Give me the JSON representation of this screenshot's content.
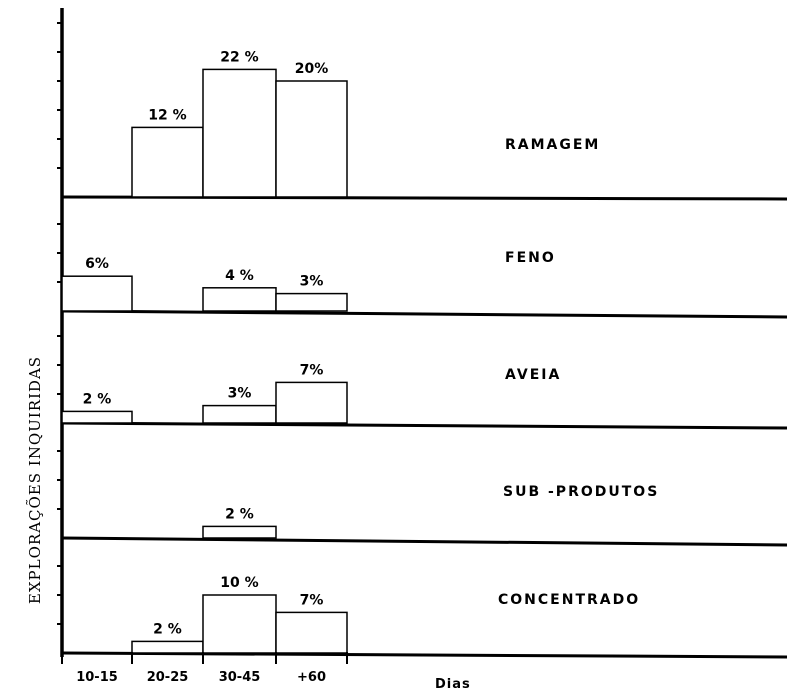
{
  "chart_data": {
    "type": "bar",
    "categories": [
      "10-15",
      "20-25",
      "30-45",
      "+60"
    ],
    "xlabel": "Dias",
    "ylabel": "EXPLORAÇÕES INQUIRIDAS",
    "panels": [
      {
        "name": "RAMAGEM",
        "values": [
          null,
          12,
          22,
          20
        ],
        "labels": [
          "",
          "12 %",
          "22 %",
          "20%"
        ]
      },
      {
        "name": "FENO",
        "values": [
          6,
          null,
          4,
          3
        ],
        "labels": [
          "6%",
          "",
          "4 %",
          "3%"
        ]
      },
      {
        "name": "AVEIA",
        "values": [
          2,
          null,
          3,
          7
        ],
        "labels": [
          "2 %",
          "",
          "3%",
          "7%"
        ]
      },
      {
        "name": "SUB -PRODUTOS",
        "values": [
          null,
          null,
          2,
          null
        ],
        "labels": [
          "",
          "",
          "2 %",
          ""
        ]
      },
      {
        "name": "CONCENTRADO",
        "values": [
          null,
          2,
          10,
          7
        ],
        "labels": [
          "",
          "2 %",
          "10 %",
          "7%"
        ]
      }
    ]
  }
}
